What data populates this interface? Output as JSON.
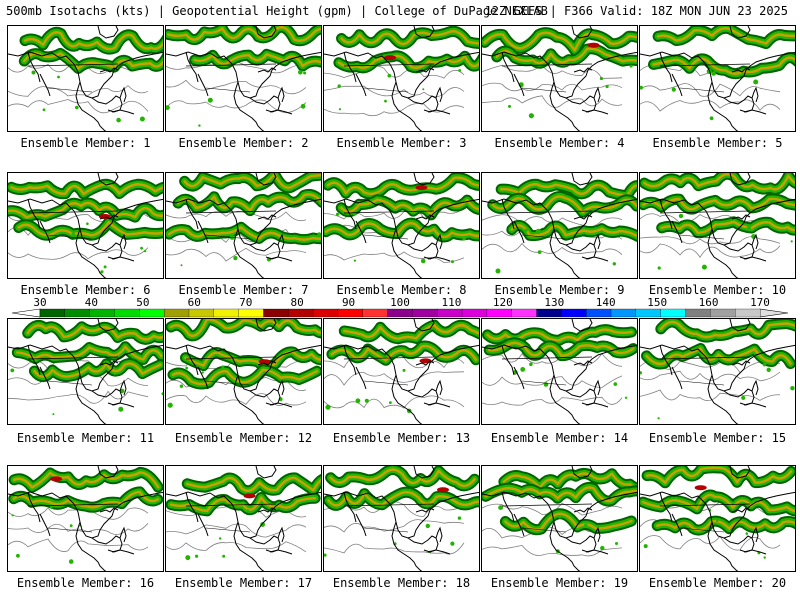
{
  "header": {
    "left": "500mb Isotachs (kts) | Geopotential Height (gpm) | College of DuPage NEXLAB",
    "right": "12Z GEFS | F366 Valid: 18Z MON JUN 23 2025"
  },
  "panels": [
    {
      "label": "Ensemble Member: 1"
    },
    {
      "label": "Ensemble Member: 2"
    },
    {
      "label": "Ensemble Member: 3"
    },
    {
      "label": "Ensemble Member: 4"
    },
    {
      "label": "Ensemble Member: 5"
    },
    {
      "label": "Ensemble Member: 6"
    },
    {
      "label": "Ensemble Member: 7"
    },
    {
      "label": "Ensemble Member: 8"
    },
    {
      "label": "Ensemble Member: 9"
    },
    {
      "label": "Ensemble Member: 10"
    },
    {
      "label": "Ensemble Member: 11"
    },
    {
      "label": "Ensemble Member: 12"
    },
    {
      "label": "Ensemble Member: 13"
    },
    {
      "label": "Ensemble Member: 14"
    },
    {
      "label": "Ensemble Member: 15"
    },
    {
      "label": "Ensemble Member: 16"
    },
    {
      "label": "Ensemble Member: 17"
    },
    {
      "label": "Ensemble Member: 18"
    },
    {
      "label": "Ensemble Member: 19"
    },
    {
      "label": "Ensemble Member: 20"
    }
  ],
  "colorbar": {
    "labels": [
      "30",
      "40",
      "50",
      "60",
      "70",
      "80",
      "90",
      "100",
      "110",
      "120",
      "130",
      "140",
      "150",
      "160",
      "170"
    ],
    "colors": [
      "#006400",
      "#008c00",
      "#00b400",
      "#00dc00",
      "#00ff00",
      "#a0a000",
      "#c8c800",
      "#f0f000",
      "#ffff00",
      "#8b0000",
      "#b40000",
      "#dc0000",
      "#ff0000",
      "#ff3232",
      "#8b008b",
      "#a000a0",
      "#c800c8",
      "#dc00dc",
      "#ff00ff",
      "#ff32ff",
      "#00008b",
      "#0000ff",
      "#0050ff",
      "#0096ff",
      "#00c8ff",
      "#00ffff",
      "#808080",
      "#a0a0a0",
      "#c8c8c8"
    ]
  },
  "colors": {
    "jet_light": "#22b400",
    "jet_dark": "#006400",
    "jet_mid": "#c8a000",
    "jet_core": "#b40000",
    "coast": "#000000",
    "height_contour": "#808080"
  }
}
